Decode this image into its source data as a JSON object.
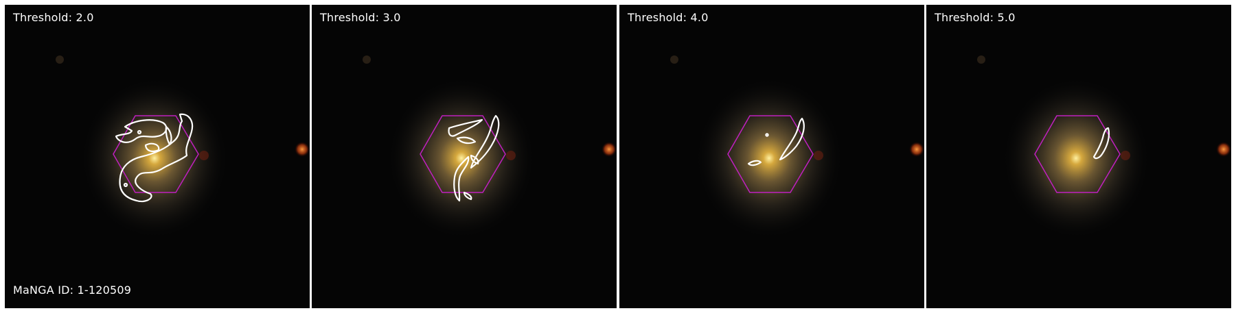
{
  "panels": [
    {
      "label": "Threshold: 2.0"
    },
    {
      "label": "Threshold: 3.0"
    },
    {
      "label": "Threshold: 4.0"
    },
    {
      "label": "Threshold: 5.0"
    }
  ],
  "id_label": "MaNGA ID: 1-120509",
  "colors": {
    "hexagon": "#c020c0",
    "contour": "#ffffff",
    "galaxy_core": "#ffe07a",
    "background": "#050505"
  }
}
